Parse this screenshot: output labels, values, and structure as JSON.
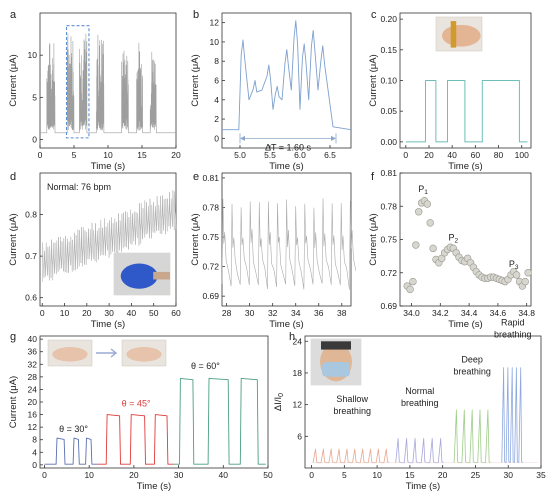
{
  "chart_data": [
    {
      "id": "a",
      "panel_label": "a",
      "type": "line",
      "xlabel": "Time (s)",
      "ylabel": "Current (μA)",
      "xlim": [
        0,
        20
      ],
      "ylim": [
        -1,
        15
      ],
      "xticks": [
        0,
        5,
        10,
        15,
        20
      ],
      "yticks": [
        0,
        5,
        10
      ],
      "xtick_labels": [
        "0",
        "5",
        "10",
        "15",
        "20"
      ],
      "ytick_labels": [
        "0",
        "5",
        "10"
      ],
      "series": [
        {
          "color": "#9e9e9e",
          "baseline": 0.8,
          "bursts": [
            [
              1.0,
              2.2,
              11
            ],
            [
              4.0,
              5.0,
              12.5
            ],
            [
              5.8,
              6.9,
              12
            ],
            [
              8.3,
              9.4,
              12
            ],
            [
              12.0,
              13.0,
              10
            ],
            [
              14.2,
              15.1,
              11
            ],
            [
              16.2,
              17.1,
              10.5
            ]
          ]
        }
      ],
      "highlight_box": {
        "x": [
          3.9,
          7.2
        ],
        "y": [
          0.2,
          13.5
        ],
        "color": "#5b8fd0"
      }
    },
    {
      "id": "b",
      "panel_label": "b",
      "type": "line",
      "xlabel": "Time (s)",
      "ylabel": "Current (μA)",
      "xlim": [
        4.7,
        6.85
      ],
      "ylim": [
        -1,
        13
      ],
      "xticks": [
        5.0,
        5.5,
        6.0,
        6.5
      ],
      "yticks": [
        0,
        2,
        4,
        6,
        8,
        10,
        12
      ],
      "xtick_labels": [
        "5.0",
        "5.5",
        "6.0",
        "6.5"
      ],
      "ytick_labels": [
        "0",
        "2",
        "4",
        "6",
        "8",
        "10",
        "12"
      ],
      "series": [
        {
          "color": "#7da0cf",
          "baseline": 0.9,
          "peaks": [
            [
              5.05,
              10.2
            ],
            [
              5.25,
              6.0
            ],
            [
              5.48,
              7.6
            ],
            [
              5.62,
              5.4
            ],
            [
              5.78,
              9.2
            ],
            [
              5.93,
              12.2
            ],
            [
              6.07,
              9.8
            ],
            [
              6.22,
              11.2
            ],
            [
              6.38,
              9.6
            ]
          ]
        }
      ],
      "annotation": {
        "text": "ΔT = 1.60 s",
        "arrow_x": [
          5.0,
          6.6
        ],
        "arrow_y": 0
      }
    },
    {
      "id": "c",
      "panel_label": "c",
      "type": "line",
      "xlabel": "Time (s)",
      "ylabel": "Current (μA)",
      "xlim": [
        -5,
        108
      ],
      "ylim": [
        -0.01,
        0.21
      ],
      "xticks": [
        0,
        20,
        40,
        60,
        80,
        100
      ],
      "yticks": [
        0.0,
        0.05,
        0.1,
        0.15,
        0.2
      ],
      "xtick_labels": [
        "0",
        "20",
        "40",
        "60",
        "80",
        "100"
      ],
      "ytick_labels": [
        "0.00",
        "0.05",
        "0.10",
        "0.15",
        "0.20"
      ],
      "series": [
        {
          "color": "#6dbfb8",
          "x": [
            0,
            17,
            17,
            26,
            26,
            36,
            36,
            51,
            51,
            66,
            66,
            98,
            98,
            105
          ],
          "y": [
            0,
            0,
            0.1,
            0.1,
            0,
            0,
            0.1,
            0.1,
            0,
            0,
            0.1,
            0.1,
            0,
            0
          ]
        }
      ]
    },
    {
      "id": "d",
      "panel_label": "d",
      "type": "line",
      "xlabel": "Time (s)",
      "ylabel": "Current (μA)",
      "xlim": [
        -1,
        60
      ],
      "ylim": [
        0.58,
        0.9
      ],
      "xticks": [
        0,
        10,
        20,
        30,
        40,
        50,
        60
      ],
      "yticks": [
        0.6,
        0.7,
        0.8
      ],
      "xtick_labels": [
        "0",
        "10",
        "20",
        "30",
        "40",
        "50",
        "60"
      ],
      "ytick_labels": [
        "0.6",
        "0.7",
        "0.8"
      ],
      "series": [
        {
          "color": "#a9a9a9",
          "start": [
            0,
            0.68
          ],
          "end": [
            60,
            0.81
          ],
          "beats_per_min": 76,
          "amplitude": 0.055
        }
      ],
      "annotation": {
        "text": "Normal: 76 bpm"
      }
    },
    {
      "id": "e",
      "panel_label": "e",
      "type": "line",
      "xlabel": "Time (s)",
      "ylabel": "Current (μA)",
      "xlim": [
        27.6,
        38.8
      ],
      "ylim": [
        0.68,
        0.815
      ],
      "xticks": [
        28,
        30,
        32,
        34,
        36,
        38
      ],
      "yticks": [
        0.69,
        0.72,
        0.75,
        0.78,
        0.81
      ],
      "xtick_labels": [
        "28",
        "30",
        "32",
        "34",
        "36",
        "38"
      ],
      "ytick_labels": [
        "0.69",
        "0.72",
        "0.75",
        "0.78",
        "0.81"
      ],
      "series": [
        {
          "color": "#a9a9a9",
          "period": 0.79,
          "low": 0.695,
          "high": 0.79
        }
      ]
    },
    {
      "id": "f",
      "panel_label": "f",
      "type": "scatter",
      "xlabel": "Time (s)",
      "ylabel": "Current (μA)",
      "xlim": [
        33.92,
        34.83
      ],
      "ylim": [
        0.69,
        0.81
      ],
      "xticks": [
        34.0,
        34.2,
        34.4,
        34.6,
        34.8
      ],
      "yticks": [
        0.69,
        0.72,
        0.75,
        0.78,
        0.81
      ],
      "xtick_labels": [
        "34.0",
        "34.2",
        "34.4",
        "34.6",
        "34.8"
      ],
      "ytick_labels": [
        "0.69",
        "0.72",
        "0.75",
        "0.78",
        "0.81"
      ],
      "series": [
        {
          "color": "#bdbdb3",
          "x": [
            33.97,
            33.99,
            34.01,
            34.03,
            34.05,
            34.07,
            34.09,
            34.11,
            34.13,
            34.15,
            34.17,
            34.19,
            34.21,
            34.23,
            34.25,
            34.27,
            34.29,
            34.31,
            34.33,
            34.35,
            34.37,
            34.39,
            34.41,
            34.43,
            34.45,
            34.47,
            34.49,
            34.51,
            34.53,
            34.55,
            34.57,
            34.59,
            34.61,
            34.63,
            34.65,
            34.67,
            34.69,
            34.71,
            34.73,
            34.75,
            34.77,
            34.79,
            34.81
          ],
          "y": [
            0.708,
            0.705,
            0.712,
            0.745,
            0.775,
            0.783,
            0.785,
            0.782,
            0.765,
            0.742,
            0.732,
            0.729,
            0.733,
            0.738,
            0.741,
            0.743,
            0.742,
            0.738,
            0.734,
            0.731,
            0.73,
            0.733,
            0.729,
            0.725,
            0.721,
            0.718,
            0.716,
            0.715,
            0.715,
            0.716,
            0.716,
            0.715,
            0.714,
            0.713,
            0.712,
            0.714,
            0.718,
            0.721,
            0.718,
            0.712,
            0.708,
            0.712,
            0.72
          ]
        }
      ],
      "annotations": [
        {
          "text": "P",
          "sub": "1",
          "x": 34.08,
          "y": 0.793
        },
        {
          "text": "P",
          "sub": "2",
          "x": 34.29,
          "y": 0.749
        },
        {
          "text": "P",
          "sub": "3",
          "x": 34.71,
          "y": 0.725
        }
      ]
    },
    {
      "id": "g",
      "panel_label": "g",
      "type": "line",
      "xlabel": "Time (s)",
      "ylabel": "Current (μA)",
      "xlim": [
        -1,
        50
      ],
      "ylim": [
        -1,
        41
      ],
      "xticks": [
        0,
        10,
        20,
        30,
        40,
        50
      ],
      "yticks": [
        0,
        4,
        8,
        12,
        16,
        20,
        24,
        28,
        32,
        36,
        40
      ],
      "xtick_labels": [
        "0",
        "10",
        "20",
        "30",
        "40",
        "50"
      ],
      "ytick_labels": [
        "0",
        "4",
        "8",
        "12",
        "16",
        "20",
        "24",
        "28",
        "32",
        "36",
        "40"
      ],
      "series": [
        {
          "name": "θ = 30°",
          "color": "#5a6fb0",
          "level": 8.5,
          "pulses": [
            [
              2.6,
              4.6
            ],
            [
              6.4,
              7.8
            ],
            [
              9.2,
              10.6
            ]
          ]
        },
        {
          "name": "θ = 45°",
          "color": "#e03a3a",
          "level": 16,
          "pulses": [
            [
              13.8,
              17.0
            ],
            [
              19.2,
              22.6
            ],
            [
              24.6,
              27.6
            ]
          ]
        },
        {
          "name": "θ = 60°",
          "color": "#4a9e84",
          "level": 27.5,
          "pulses": [
            [
              30.2,
              33.4
            ],
            [
              36.6,
              41.3
            ],
            [
              43.8,
              47.8
            ]
          ]
        }
      ],
      "annotations": [
        {
          "text": "θ = 30°",
          "x": 6.5,
          "y": 10.5,
          "color": "#222"
        },
        {
          "text": "θ = 45°",
          "x": 20.5,
          "y": 18.5,
          "color": "#e03a3a"
        },
        {
          "text": "θ = 60°",
          "x": 36,
          "y": 30.5,
          "color": "#222"
        }
      ]
    },
    {
      "id": "h",
      "panel_label": "h",
      "type": "line",
      "xlabel": "Time (s)",
      "ylabel": "ΔI/I",
      "ylabel_sub": "0",
      "xlim": [
        -1,
        35
      ],
      "ylim": [
        0,
        25
      ],
      "xticks": [
        0,
        5,
        10,
        15,
        20,
        25,
        30,
        35
      ],
      "yticks": [
        6,
        12,
        18,
        24
      ],
      "xtick_labels": [
        "0",
        "5",
        "10",
        "15",
        "20",
        "25",
        "30",
        "35"
      ],
      "ytick_labels": [
        "6",
        "12",
        "18",
        "24"
      ],
      "series": [
        {
          "name": "Shallow breathing",
          "color": "#e8a890",
          "peaks": [
            0.6,
            1.8,
            3.0,
            4.2,
            5.4,
            6.6,
            7.8,
            9.0,
            10.2,
            11.4
          ],
          "height": 3.6
        },
        {
          "name": "Normal breathing",
          "color": "#a8a8dd",
          "peaks": [
            13.2,
            14.5,
            15.8,
            17.1,
            18.4,
            19.7
          ],
          "height": 5.6
        },
        {
          "name": "Deep breathing",
          "color": "#9fce8a",
          "peaks": [
            22.1,
            23.3,
            24.5,
            25.7,
            26.9
          ],
          "height": 11
        },
        {
          "name": "Rapid breathing",
          "color": "#8fa9e0",
          "peaks": [
            29.3,
            29.95,
            30.6,
            31.25,
            31.9
          ],
          "height": 19
        }
      ],
      "annotations": [
        {
          "text": "Shallow",
          "x": 6.2,
          "y": 12.5
        },
        {
          "text": "breathing",
          "x": 6.2,
          "y": 10.2
        },
        {
          "text": "Normal",
          "x": 16.5,
          "y": 14.0
        },
        {
          "text": "breathing",
          "x": 16.5,
          "y": 11.7
        },
        {
          "text": "Deep",
          "x": 24.5,
          "y": 20.0
        },
        {
          "text": "breathing",
          "x": 24.5,
          "y": 17.7
        },
        {
          "text": "Rapid",
          "x": 30.7,
          "y": 27.0
        },
        {
          "text": "breathing",
          "x": 30.7,
          "y": 24.7
        }
      ]
    }
  ]
}
